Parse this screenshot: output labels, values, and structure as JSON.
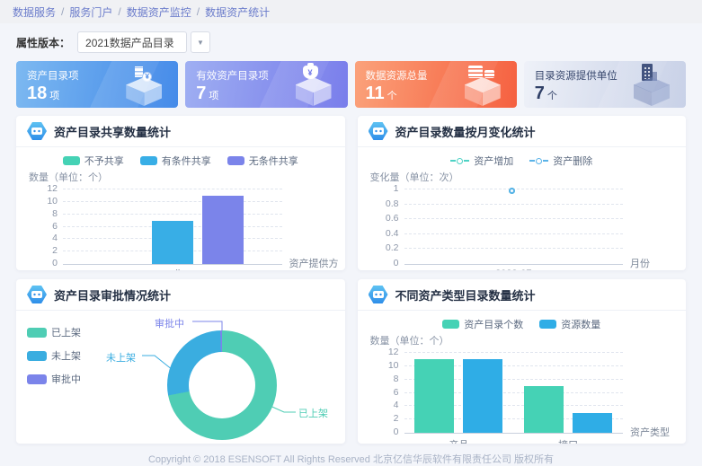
{
  "breadcrumb": {
    "separator": "/",
    "items": [
      "数据服务",
      "服务门户",
      "数据资产监控",
      "数据资产统计"
    ]
  },
  "filter": {
    "label": "属性版本：",
    "selected": "2021数据产品目录",
    "dropdown_glyph": "▼"
  },
  "stat_cards": [
    {
      "title": "资产目录项",
      "value": "18",
      "unit": "项",
      "icon": "document-yen-cube-icon",
      "icon_glyph": "¥",
      "bg_from": "#7db9f1",
      "bg_to": "#3e86e8",
      "text_color": "#ffffff"
    },
    {
      "title": "有效资产目录项",
      "value": "7",
      "unit": "项",
      "icon": "money-bag-cube-icon",
      "icon_glyph": "¥",
      "bg_from": "#9fafF2",
      "bg_to": "#7478ea",
      "text_color": "#ffffff"
    },
    {
      "title": "数据资源总量",
      "value": "11",
      "unit": "个",
      "icon": "coins-cube-icon",
      "icon_glyph": "",
      "bg_from": "#fba27b",
      "bg_to": "#f55a38",
      "text_color": "#ffffff"
    },
    {
      "title": "目录资源提供单位",
      "value": "7",
      "unit": "个",
      "icon": "building-cube-icon",
      "icon_glyph": "",
      "bg_from": "#eef1f8",
      "bg_to": "#c6cfe6",
      "text_color": "#2f3f66"
    }
  ],
  "chart_data": [
    {
      "type": "bar",
      "title": "资产目录共享数量统计",
      "categories": [
        "null"
      ],
      "series": [
        {
          "name": "不予共享",
          "color": "#45d2b5",
          "values": [
            0
          ]
        },
        {
          "name": "有条件共享",
          "color": "#38aee6",
          "values": [
            7
          ]
        },
        {
          "name": "无条件共享",
          "color": "#7b84ea",
          "values": [
            11
          ]
        }
      ],
      "ylabel": "数量（单位：个）",
      "xlabel": "资产提供方",
      "ylim": [
        0,
        12
      ],
      "yticks": [
        0,
        2,
        4,
        6,
        8,
        10,
        12
      ],
      "grid": "dashed",
      "legend_position": "top-center"
    },
    {
      "type": "line",
      "title": "资产目录数量按月变化统计",
      "categories": [
        "2023-07"
      ],
      "series": [
        {
          "name": "资产增加",
          "color": "#4ed2c5",
          "values": [
            1
          ]
        },
        {
          "name": "资产删除",
          "color": "#5ab3e8",
          "values": [
            1
          ]
        }
      ],
      "ylabel": "变化量（单位：次）",
      "xlabel": "月份",
      "ylim": [
        0,
        1
      ],
      "yticks": [
        0,
        0.2,
        0.4,
        0.6,
        0.8,
        1
      ],
      "grid": "dashed",
      "legend_position": "top-center"
    },
    {
      "type": "pie",
      "title": "资产目录审批情况统计",
      "slices": [
        {
          "name": "已上架",
          "color": "#4fcdb4",
          "percent": 72
        },
        {
          "name": "未上架",
          "color": "#3aade0",
          "percent": 27.5
        },
        {
          "name": "审批中",
          "color": "#7b84ea",
          "percent": 0.5
        }
      ],
      "legend_position": "left",
      "donut": true
    },
    {
      "type": "bar",
      "title": "不同资产类型目录数量统计",
      "categories": [
        "产品",
        "接口"
      ],
      "series": [
        {
          "name": "资产目录个数",
          "color": "#45d2b5",
          "values": [
            11,
            7
          ]
        },
        {
          "name": "资源数量",
          "color": "#2fade6",
          "values": [
            11,
            3
          ]
        }
      ],
      "ylabel": "数量（单位：个）",
      "xlabel": "资产类型",
      "ylim": [
        0,
        12
      ],
      "yticks": [
        0,
        2,
        4,
        6,
        8,
        10,
        12
      ],
      "grid": "dashed",
      "legend_position": "top-center"
    }
  ],
  "footer": {
    "text": "Copyright © 2018 ESENSOFT All Rights Reserved 北京亿信华辰软件有限责任公司 版权所有"
  }
}
